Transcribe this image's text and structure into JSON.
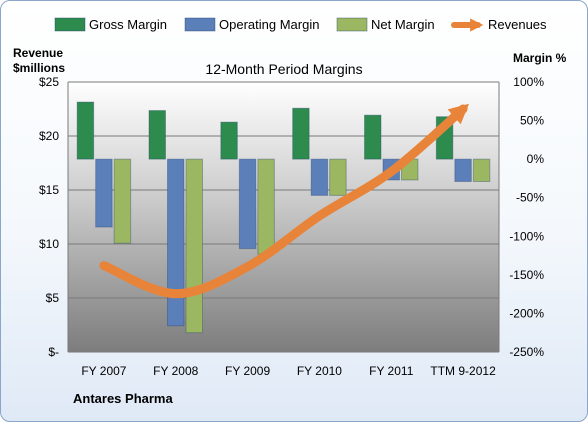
{
  "chart_data": {
    "type": "bar",
    "title": "12-Month Period Margins",
    "company": "Antares Pharma",
    "left_axis": {
      "label_line1": "Revenue",
      "label_line2": "$millions",
      "range": [
        0,
        25
      ],
      "ticks": [
        0,
        5,
        10,
        15,
        20,
        25
      ],
      "tick_labels": [
        "$-",
        "$5",
        "$10",
        "$15",
        "$20",
        "$25"
      ]
    },
    "right_axis": {
      "label": "Margin %",
      "range": [
        -250,
        100
      ],
      "ticks": [
        -250,
        -200,
        -150,
        -100,
        -50,
        0,
        50,
        100
      ],
      "tick_labels": [
        "-250%",
        "-200%",
        "-150%",
        "-100%",
        "-50%",
        "0%",
        "50%",
        "100%"
      ]
    },
    "categories": [
      "FY 2007",
      "FY 2008",
      "FY 2009",
      "FY 2010",
      "FY 2011",
      "TTM 9-2012"
    ],
    "series": [
      {
        "name": "Gross Margin",
        "axis": "right",
        "kind": "bar",
        "color": "#2e8b4e",
        "values": [
          74,
          63,
          48,
          66,
          57,
          55
        ]
      },
      {
        "name": "Operating Margin",
        "axis": "right",
        "kind": "bar",
        "color": "#5b7fb8",
        "values": [
          -88,
          -216,
          -116,
          -47,
          -27,
          -29
        ]
      },
      {
        "name": "Net Margin",
        "axis": "right",
        "kind": "bar",
        "color": "#9bb761",
        "values": [
          -109,
          -225,
          -123,
          -47,
          -27,
          -29
        ]
      },
      {
        "name": "Revenues",
        "axis": "left",
        "kind": "line",
        "color": "#e8843a",
        "values": [
          8.0,
          5.4,
          7.9,
          12.6,
          16.7,
          22.5
        ]
      }
    ],
    "legend_position": "top",
    "grid": true
  }
}
